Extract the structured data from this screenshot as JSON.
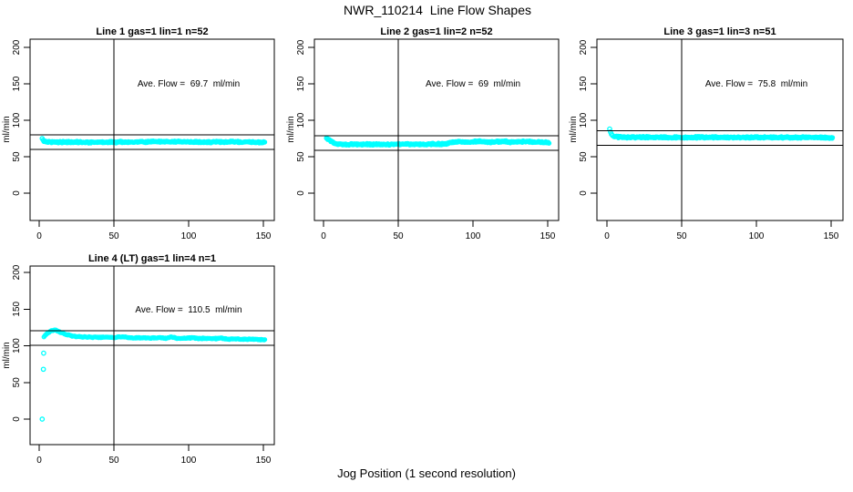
{
  "figure": {
    "title": "NWR_110214  Line Flow Shapes",
    "xlabel": "Jog Position (1 second resolution)",
    "bg_color": "#FFFFFF",
    "point_color": "#00FFFF",
    "line_color": "#000000"
  },
  "chart_data": [
    {
      "type": "scatter",
      "title": "Line 1 gas=1 lin=1 n=52",
      "ylabel": "ml/min",
      "annotation": "Ave. Flow =  69.7  ml/min",
      "ave_flow_ml_min": 69.7,
      "n": 52,
      "xticks": [
        0,
        50,
        100,
        150
      ],
      "yticks": [
        0,
        50,
        100,
        150,
        200
      ],
      "xlim": [
        -6,
        157
      ],
      "ylim": [
        -35,
        211
      ],
      "ref_vline_x": 50,
      "ref_hlines": [
        59.7,
        79.7
      ],
      "lead_points": [
        [
          2,
          75
        ]
      ],
      "band": {
        "x_start": 2.5,
        "x_end": 151,
        "control_points": [
          [
            2.5,
            72
          ],
          [
            5,
            70.5
          ],
          [
            15,
            70
          ],
          [
            60,
            70
          ],
          [
            75,
            70.5
          ],
          [
            90,
            70.5
          ],
          [
            110,
            70
          ],
          [
            130,
            70.3
          ],
          [
            151,
            69.8
          ]
        ],
        "jitter": 1.4,
        "n_render": 520
      }
    },
    {
      "type": "scatter",
      "title": "Line 2 gas=1 lin=2 n=52",
      "ylabel": "ml/min",
      "annotation": "Ave. Flow =  69  ml/min",
      "ave_flow_ml_min": 69,
      "n": 52,
      "xticks": [
        0,
        50,
        100,
        150
      ],
      "yticks": [
        0,
        50,
        100,
        150,
        200
      ],
      "xlim": [
        -6,
        157
      ],
      "ylim": [
        -35,
        211
      ],
      "ref_vline_x": 50,
      "ref_hlines": [
        59,
        79
      ],
      "lead_points": [
        [
          2,
          75.5
        ]
      ],
      "band": {
        "x_start": 2.5,
        "x_end": 151,
        "control_points": [
          [
            2.5,
            74.5
          ],
          [
            4,
            73
          ],
          [
            6,
            70
          ],
          [
            9,
            67.5
          ],
          [
            15,
            67
          ],
          [
            45,
            67
          ],
          [
            70,
            67.3
          ],
          [
            82,
            67.5
          ],
          [
            86,
            70
          ],
          [
            91,
            70.8
          ],
          [
            96,
            69.8
          ],
          [
            101,
            70.8
          ],
          [
            106,
            71
          ],
          [
            111,
            70
          ],
          [
            116,
            70.6
          ],
          [
            121,
            71
          ],
          [
            126,
            70
          ],
          [
            131,
            70.5
          ],
          [
            136,
            71
          ],
          [
            141,
            70
          ],
          [
            146,
            70.2
          ],
          [
            151,
            69.2
          ]
        ],
        "jitter": 1.4,
        "n_render": 520
      }
    },
    {
      "type": "scatter",
      "title": "Line 3 gas=1 lin=3 n=51",
      "ylabel": "ml/min",
      "annotation": "Ave. Flow =  75.8  ml/min",
      "ave_flow_ml_min": 75.8,
      "n": 51,
      "xticks": [
        0,
        50,
        100,
        150
      ],
      "yticks": [
        0,
        50,
        100,
        150,
        200
      ],
      "xlim": [
        -6,
        157
      ],
      "ylim": [
        -35,
        211
      ],
      "ref_vline_x": 50,
      "ref_hlines": [
        65.8,
        85.8
      ],
      "lead_points": [
        [
          1.8,
          88
        ],
        [
          2.4,
          84
        ],
        [
          3,
          81
        ],
        [
          3.8,
          79
        ]
      ],
      "band": {
        "x_start": 4.5,
        "x_end": 151,
        "control_points": [
          [
            4.5,
            77.5
          ],
          [
            10,
            76.8
          ],
          [
            40,
            76.6
          ],
          [
            80,
            76.6
          ],
          [
            120,
            76.5
          ],
          [
            151,
            76.2
          ]
        ],
        "jitter": 1.4,
        "n_render": 510
      }
    },
    {
      "type": "scatter",
      "title": "Line 4 (LT) gas=1 lin=4 n=1",
      "ylabel": "ml/min",
      "annotation": "Ave. Flow =  110.5  ml/min",
      "ave_flow_ml_min": 110.5,
      "n": 1,
      "xticks": [
        0,
        50,
        100,
        150
      ],
      "yticks": [
        0,
        50,
        100,
        150,
        200
      ],
      "xlim": [
        -6,
        157
      ],
      "ylim": [
        -35,
        210
      ],
      "ref_vline_x": 50,
      "ref_hlines": [
        100.5,
        120.5
      ],
      "lead_points": [
        [
          2,
          0
        ],
        [
          2.8,
          68
        ],
        [
          3,
          90
        ]
      ],
      "band": {
        "x_start": 3.2,
        "x_end": 151,
        "control_points": [
          [
            3.2,
            112
          ],
          [
            5,
            116
          ],
          [
            8,
            120.5
          ],
          [
            11,
            121.5
          ],
          [
            14,
            118.5
          ],
          [
            18,
            115.5
          ],
          [
            22,
            113.5
          ],
          [
            26,
            112.5
          ],
          [
            32,
            112
          ],
          [
            38,
            111.5
          ],
          [
            44,
            111.8
          ],
          [
            50,
            111.3
          ],
          [
            56,
            112.3
          ],
          [
            62,
            110.8
          ],
          [
            68,
            110.9
          ],
          [
            74,
            110.6
          ],
          [
            80,
            111.2
          ],
          [
            85,
            110.4
          ],
          [
            88,
            112
          ],
          [
            92,
            110.2
          ],
          [
            97,
            110
          ],
          [
            102,
            111
          ],
          [
            107,
            109.6
          ],
          [
            112,
            110.2
          ],
          [
            117,
            109.6
          ],
          [
            122,
            110.4
          ],
          [
            127,
            109
          ],
          [
            132,
            109.6
          ],
          [
            137,
            108.7
          ],
          [
            142,
            109.2
          ],
          [
            147,
            108.5
          ],
          [
            151,
            108.2
          ]
        ],
        "jitter": 0.8,
        "n_render": 300
      }
    }
  ]
}
